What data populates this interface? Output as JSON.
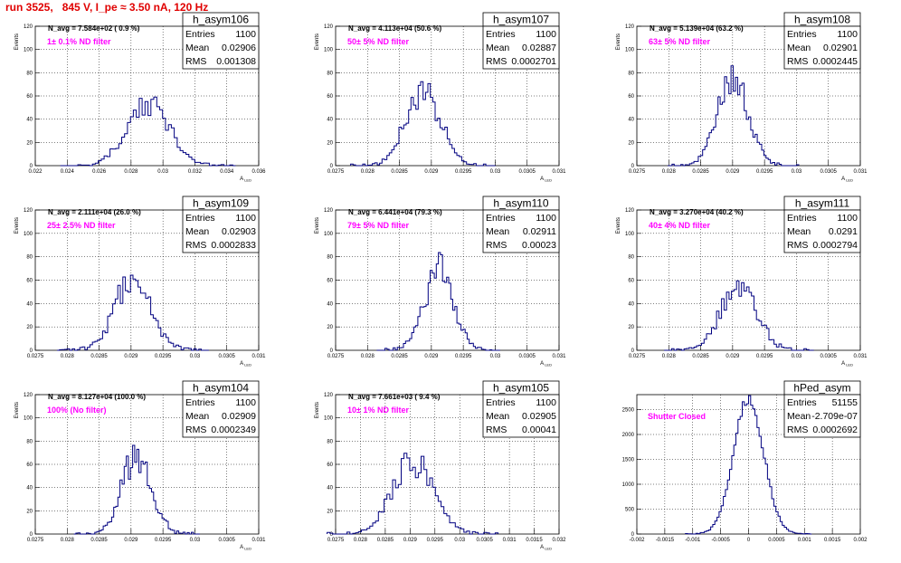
{
  "page": {
    "title": "run 3525,   845 V, I_pe ≈ 3.50 nA, 120 Hz",
    "x_axis_label": "A_{LED}",
    "y_axis_label": "Events"
  },
  "stats_labels": {
    "entries": "Entries",
    "mean": "Mean",
    "rms": "RMS"
  },
  "colors": {
    "histogram": "#000080",
    "grid": "#000000",
    "annotation": "#ff00ff",
    "title": "#e00000"
  },
  "chart_data": [
    {
      "type": "histogram",
      "name": "h_asym106",
      "title": "",
      "xlabel": "A_{LED}",
      "ylabel": "Events",
      "xlim": [
        0.022,
        0.036
      ],
      "ylim": [
        0,
        120
      ],
      "grid": true,
      "xticks": [
        "0.022",
        "0.024",
        "0.026",
        "0.028",
        "0.03",
        "0.032",
        "0.034",
        "0.036"
      ],
      "yticks": [
        "0",
        "20",
        "40",
        "60",
        "80",
        "100",
        "120"
      ],
      "stats": {
        "entries": "1100",
        "mean": "0.02906",
        "rms": "0.001308"
      },
      "annotation": "N_avg = 7.584e+02 ( 0.9 %)",
      "filter": "1± 0.1% ND filter",
      "mean": 0.02906,
      "rms": 0.001308,
      "peak": 53,
      "entries": 1100
    },
    {
      "type": "histogram",
      "name": "h_asym107",
      "title": "",
      "xlabel": "A_{LED}",
      "ylabel": "Events",
      "xlim": [
        0.0275,
        0.031
      ],
      "ylim": [
        0,
        120
      ],
      "grid": true,
      "xticks": [
        "0.0275",
        "0.028",
        "0.0285",
        "0.029",
        "0.0295",
        "0.03",
        "0.0305",
        "0.031"
      ],
      "yticks": [
        "0",
        "20",
        "40",
        "60",
        "80",
        "100",
        "120"
      ],
      "stats": {
        "entries": "1100",
        "mean": "0.02887",
        "rms": "0.0002701"
      },
      "annotation": "N_avg = 4.113e+04 (50.6 %)",
      "filter": "50± 5% ND filter",
      "mean": 0.02887,
      "rms": 0.0002701,
      "peak": 64,
      "entries": 1100
    },
    {
      "type": "histogram",
      "name": "h_asym108",
      "title": "",
      "xlabel": "A_{LED}",
      "ylabel": "Events",
      "xlim": [
        0.0275,
        0.031
      ],
      "ylim": [
        0,
        120
      ],
      "grid": true,
      "xticks": [
        "0.0275",
        "0.028",
        "0.0285",
        "0.029",
        "0.0295",
        "0.03",
        "0.0305",
        "0.031"
      ],
      "yticks": [
        "0",
        "20",
        "40",
        "60",
        "80",
        "100",
        "120"
      ],
      "stats": {
        "entries": "1100",
        "mean": "0.02901",
        "rms": "0.0002445"
      },
      "annotation": "N_avg = 5.139e+04 (63.2 %)",
      "filter": "63± 5% ND filter",
      "mean": 0.02901,
      "rms": 0.0002445,
      "peak": 73,
      "entries": 1100
    },
    {
      "type": "histogram",
      "name": "h_asym109",
      "title": "",
      "xlabel": "A_{LED}",
      "ylabel": "Events",
      "xlim": [
        0.0275,
        0.031
      ],
      "ylim": [
        0,
        120
      ],
      "grid": true,
      "xticks": [
        "0.0275",
        "0.028",
        "0.0285",
        "0.029",
        "0.0295",
        "0.03",
        "0.0305",
        "0.031"
      ],
      "yticks": [
        "0",
        "20",
        "40",
        "60",
        "80",
        "100",
        "120"
      ],
      "stats": {
        "entries": "1100",
        "mean": "0.02903",
        "rms": "0.0002833"
      },
      "annotation": "N_avg = 2.111e+04 (26.0 %)",
      "filter": "25± 2.5% ND filter",
      "mean": 0.02903,
      "rms": 0.0002833,
      "peak": 60,
      "entries": 1100
    },
    {
      "type": "histogram",
      "name": "h_asym110",
      "title": "",
      "xlabel": "A_{LED}",
      "ylabel": "Events",
      "xlim": [
        0.0275,
        0.031
      ],
      "ylim": [
        0,
        120
      ],
      "grid": true,
      "xticks": [
        "0.0275",
        "0.028",
        "0.0285",
        "0.029",
        "0.0295",
        "0.03",
        "0.0305",
        "0.031"
      ],
      "yticks": [
        "0",
        "20",
        "40",
        "60",
        "80",
        "100",
        "120"
      ],
      "stats": {
        "entries": "1100",
        "mean": "0.02911",
        "rms": "0.00023"
      },
      "annotation": "N_avg = 6.441e+04 (79.3 %)",
      "filter": "79± 5% ND filter",
      "mean": 0.02911,
      "rms": 0.00023,
      "peak": 68,
      "entries": 1100
    },
    {
      "type": "histogram",
      "name": "h_asym111",
      "title": "",
      "xlabel": "A_{LED}",
      "ylabel": "Events",
      "xlim": [
        0.0275,
        0.031
      ],
      "ylim": [
        0,
        120
      ],
      "grid": true,
      "xticks": [
        "0.0275",
        "0.028",
        "0.0285",
        "0.029",
        "0.0295",
        "0.03",
        "0.0305",
        "0.031"
      ],
      "yticks": [
        "0",
        "20",
        "40",
        "60",
        "80",
        "100",
        "120"
      ],
      "stats": {
        "entries": "1100",
        "mean": "0.0291",
        "rms": "0.0002794"
      },
      "annotation": "N_avg = 3.270e+04 (40.2 %)",
      "filter": "40± 4% ND filter",
      "mean": 0.0291,
      "rms": 0.0002794,
      "peak": 56,
      "entries": 1100
    },
    {
      "type": "histogram",
      "name": "h_asym104",
      "title": "",
      "xlabel": "A_{LED}",
      "ylabel": "Events",
      "xlim": [
        0.0275,
        0.031
      ],
      "ylim": [
        0,
        120
      ],
      "grid": true,
      "xticks": [
        "0.0275",
        "0.028",
        "0.0285",
        "0.029",
        "0.0295",
        "0.03",
        "0.0305",
        "0.031"
      ],
      "yticks": [
        "0",
        "20",
        "40",
        "60",
        "80",
        "100",
        "120"
      ],
      "stats": {
        "entries": "1100",
        "mean": "0.02909",
        "rms": "0.0002349"
      },
      "annotation": "N_avg = 8.127e+04 (100.0 %)",
      "filter": "100% (No filter)",
      "mean": 0.02909,
      "rms": 0.0002349,
      "peak": 66,
      "entries": 1100
    },
    {
      "type": "histogram",
      "name": "h_asym105",
      "title": "",
      "xlabel": "A_{LED}",
      "ylabel": "Events",
      "xlim": [
        0.0275,
        0.032
      ],
      "ylim": [
        0,
        120
      ],
      "grid": true,
      "xticks": [
        "0.0275",
        "0.028",
        "0.0285",
        "0.029",
        "0.0295",
        "0.03",
        "0.0305",
        "0.031",
        "0.0315",
        "0.032"
      ],
      "yticks": [
        "0",
        "20",
        "40",
        "60",
        "80",
        "100",
        "120"
      ],
      "stats": {
        "entries": "1100",
        "mean": "0.02905",
        "rms": "0.00041"
      },
      "annotation": "N_avg = 7.661e+03 ( 9.4 %)",
      "filter": "10± 1% ND filter",
      "mean": 0.02905,
      "rms": 0.00041,
      "peak": 62,
      "entries": 1100
    },
    {
      "type": "histogram",
      "name": "hPed_asym",
      "title": "",
      "xlabel": "",
      "ylabel": "",
      "xlim": [
        -0.002,
        0.002
      ],
      "ylim": [
        0,
        2800
      ],
      "grid": true,
      "xticks": [
        "-0.002",
        "-0.0015",
        "-0.001",
        "-0.0005",
        "0",
        "0.0005",
        "0.001",
        "0.0015",
        "0.002"
      ],
      "yticks": [
        "0",
        "500",
        "1000",
        "1500",
        "2000",
        "2500"
      ],
      "stats": {
        "entries": "51155",
        "mean": "-2.709e-07",
        "rms": "0.0002692"
      },
      "annotation": "",
      "filter": "Shutter Closed",
      "mean": -2.7e-07,
      "rms": 0.0002692,
      "peak": 2720,
      "entries": 51155
    }
  ]
}
